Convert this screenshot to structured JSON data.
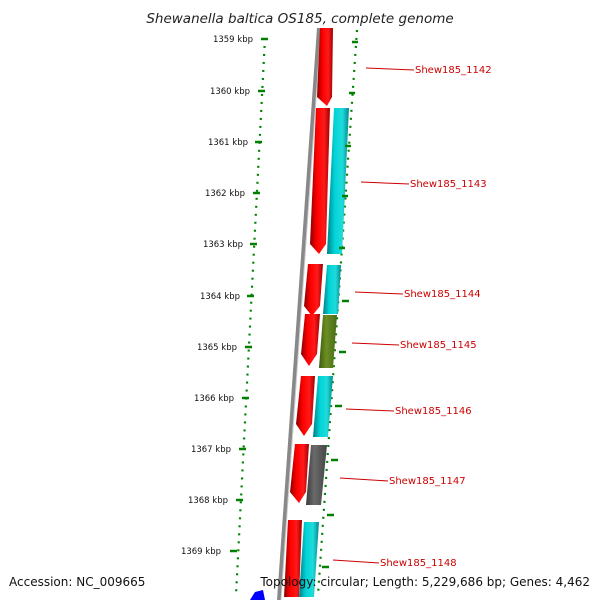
{
  "title": "Shewanella baltica OS185, complete genome",
  "footer": {
    "accession": "Accession: NC_009665",
    "summary": "Topology: circular; Length: 5,229,686 bp; Genes: 4,462"
  },
  "scale_labels": [
    "1359 kbp",
    "1360 kbp",
    "1361 kbp",
    "1362 kbp",
    "1363 kbp",
    "1364 kbp",
    "1365 kbp",
    "1366 kbp",
    "1367 kbp",
    "1368 kbp",
    "1369 kbp"
  ],
  "genes": [
    {
      "name": "Shew185_1142"
    },
    {
      "name": "Shew185_1143"
    },
    {
      "name": "Shew185_1144"
    },
    {
      "name": "Shew185_1145"
    },
    {
      "name": "Shew185_1146"
    },
    {
      "name": "Shew185_1147"
    },
    {
      "name": "Shew185_1148"
    }
  ],
  "colors": {
    "cds": "#ff0000",
    "gene_cyan": "#00c8cc",
    "gene_olive": "#6b8e23",
    "gene_gray": "#606060",
    "backbone": "#808080",
    "scale": "#008000",
    "label": "#cc0000",
    "marker": "#0000ff"
  }
}
